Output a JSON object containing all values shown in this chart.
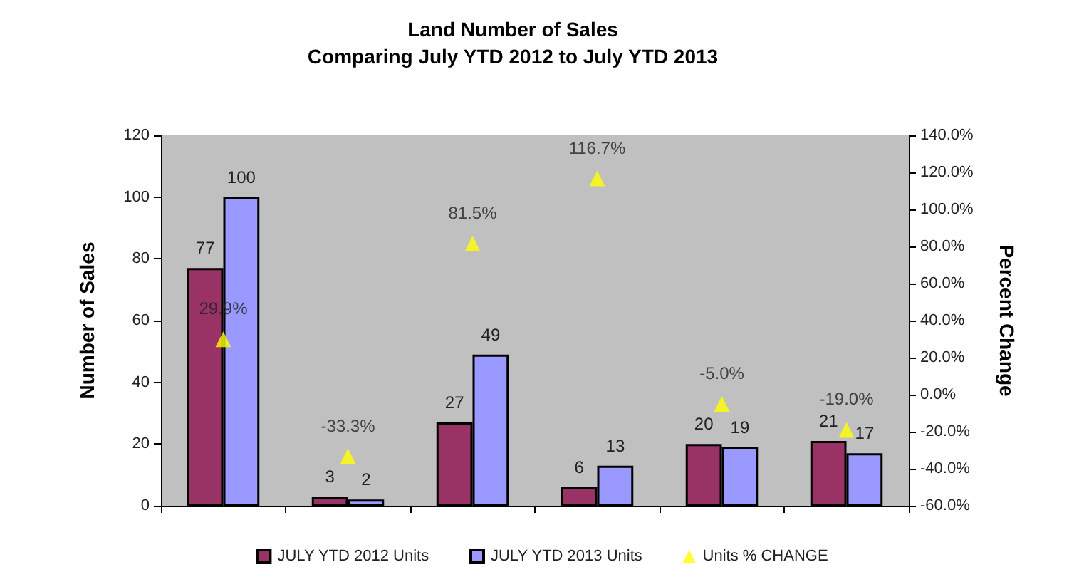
{
  "chart_data": {
    "type": "bar",
    "title": "Land Number of Sales\nComparing July YTD 2012 to July YTD 2013",
    "ylabel": "Number of Sales",
    "y2label": "Percent Change",
    "categories": [
      null,
      null,
      null,
      null,
      null,
      null
    ],
    "series": [
      {
        "name": "JULY YTD 2012 Units",
        "color": "#993366",
        "values": [
          77,
          3,
          27,
          6,
          20,
          21
        ]
      },
      {
        "name": "JULY YTD 2013 Units",
        "color": "#9999ff",
        "values": [
          100,
          2,
          49,
          13,
          19,
          17
        ]
      },
      {
        "name": "Units % CHANGE",
        "type": "scatter",
        "axis": "y2",
        "marker": "triangle",
        "color": "#ffff00",
        "values": [
          29.9,
          -33.3,
          81.5,
          116.7,
          -5.0,
          -19.0
        ],
        "value_labels": [
          "29.9%",
          "-33.3%",
          "81.5%",
          "116.7%",
          "-5.0%",
          "-19.0%"
        ]
      }
    ],
    "data_labels": true,
    "ylim": [
      0,
      120
    ],
    "yticks": [
      0,
      20,
      40,
      60,
      80,
      100,
      120
    ],
    "y2lim": [
      -60,
      140
    ],
    "y2ticks": [
      {
        "value": -60,
        "label": "-60.0%"
      },
      {
        "value": -40,
        "label": "-40.0%"
      },
      {
        "value": -20,
        "label": "-20.0%"
      },
      {
        "value": 0,
        "label": "0.0%"
      },
      {
        "value": 20,
        "label": "20.0%"
      },
      {
        "value": 40,
        "label": "40.0%"
      },
      {
        "value": 60,
        "label": "60.0%"
      },
      {
        "value": 80,
        "label": "80.0%"
      },
      {
        "value": 100,
        "label": "100.0%"
      },
      {
        "value": 120,
        "label": "120.0%"
      },
      {
        "value": 140,
        "label": "140.0%"
      }
    ],
    "grid": false,
    "legend": "bottom"
  }
}
